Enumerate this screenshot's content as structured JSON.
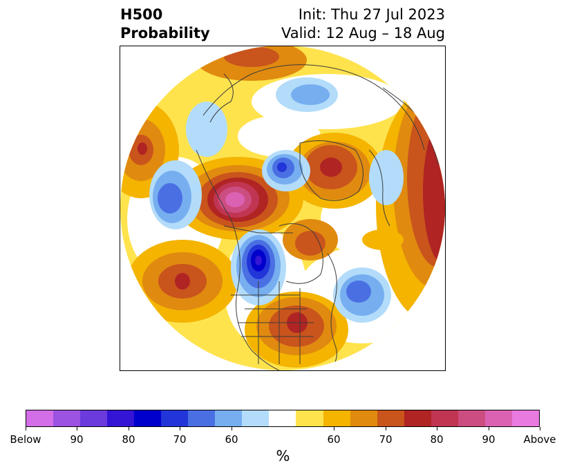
{
  "header": {
    "title_line1": "H500",
    "title_line2": "Probability",
    "init": "Init: Thu 27 Jul 2023",
    "valid": "Valid: 12 Aug – 18 Aug"
  },
  "map": {
    "projection": "north-polar-stereographic",
    "features": [
      "probability-shading",
      "coastlines",
      "country-borders",
      "state-province-borders"
    ],
    "anomalies": [
      {
        "region": "western North America (Alaska/Yukon)",
        "category": "above",
        "peak_percent": 90
      },
      {
        "region": "central Canada / Hudson Bay",
        "category": "below",
        "peak_percent": 85
      },
      {
        "region": "eastern United States",
        "category": "above",
        "peak_percent": 80
      },
      {
        "region": "North Atlantic",
        "category": "below",
        "peak_percent": 70
      },
      {
        "region": "central North Pacific",
        "category": "above",
        "peak_percent": 80
      },
      {
        "region": "Gulf of Alaska / NE Pacific",
        "category": "below",
        "peak_percent": 75
      },
      {
        "region": "Barents Sea / Scandinavia",
        "category": "above",
        "peak_percent": 80
      },
      {
        "region": "Siberia / Asia",
        "category": "above",
        "peak_percent": 80
      },
      {
        "region": "Kara Sea / northern Russia",
        "category": "below",
        "peak_percent": 65
      }
    ]
  },
  "colorbar": {
    "label": "%",
    "colors": [
      "#d36ee8",
      "#9d53e2",
      "#6b3bdd",
      "#3415d6",
      "#0000cc",
      "#2235d8",
      "#4a6fe3",
      "#76aef0",
      "#b3dcfa",
      "#ffffff",
      "#ffe34d",
      "#f4b400",
      "#e08a10",
      "#c9541c",
      "#b02424",
      "#c03552",
      "#cc4d80",
      "#db62b2",
      "#e87ae0"
    ],
    "ticks": [
      {
        "label": "Below",
        "index": 0
      },
      {
        "label": "90",
        "index": 2
      },
      {
        "label": "80",
        "index": 4
      },
      {
        "label": "70",
        "index": 6
      },
      {
        "label": "60",
        "index": 8
      },
      {
        "label": "60",
        "index": 12
      },
      {
        "label": "70",
        "index": 14
      },
      {
        "label": "80",
        "index": 16
      },
      {
        "label": "90",
        "index": 18
      },
      {
        "label": "Above",
        "index": 20
      }
    ]
  }
}
